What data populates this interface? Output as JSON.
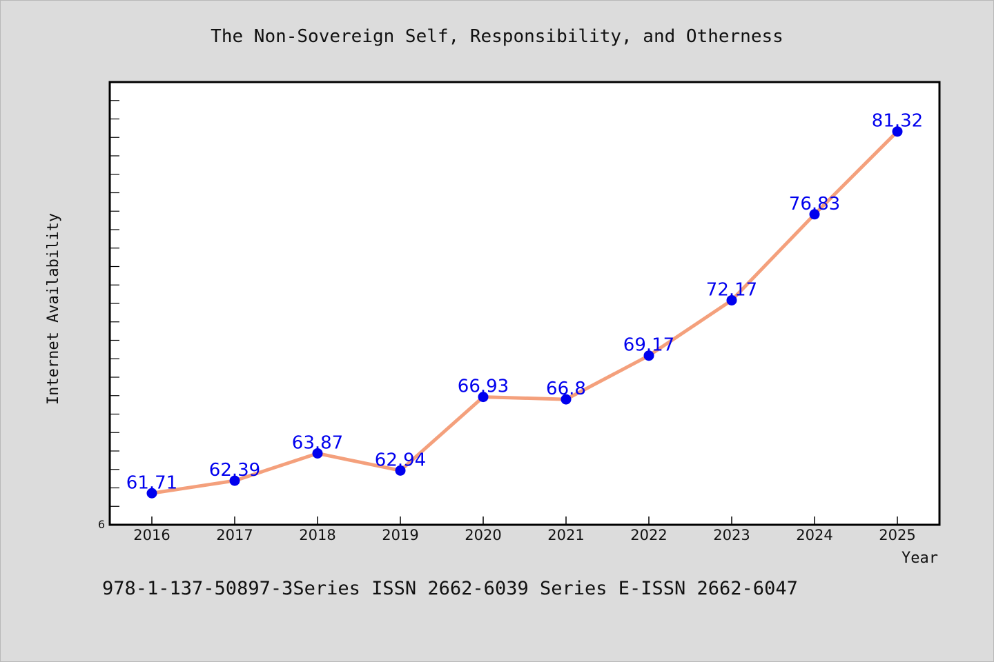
{
  "chart_data": {
    "type": "line",
    "title": "The Non-Sovereign Self, Responsibility, and Otherness",
    "xlabel": "Year",
    "ylabel": "Internet Availability",
    "categories": [
      "2016",
      "2017",
      "2018",
      "2019",
      "2020",
      "2021",
      "2022",
      "2023",
      "2024",
      "2025"
    ],
    "series": [
      {
        "values": [
          61.71,
          62.39,
          63.87,
          62.94,
          66.93,
          66.8,
          69.17,
          72.17,
          76.83,
          81.32
        ]
      }
    ],
    "data_labels": [
      "61.71",
      "62.39",
      "63.87",
      "62.94",
      "66.93",
      "66.8",
      "69.17",
      "72.17",
      "76.83",
      "81.32"
    ],
    "y_visible_tick_label": "6",
    "ylim": [
      60,
      84
    ],
    "line_color": "#f4a07c",
    "marker_color": "#0000ee",
    "label_color": "#0000ee",
    "grid": false,
    "legend": "none"
  },
  "footer_text": "978-1-137-50897-3Series ISSN 2662-6039 Series E-ISSN 2662-6047",
  "colors": {
    "background": "#dcdcdc",
    "plot_area": "#ffffff"
  }
}
